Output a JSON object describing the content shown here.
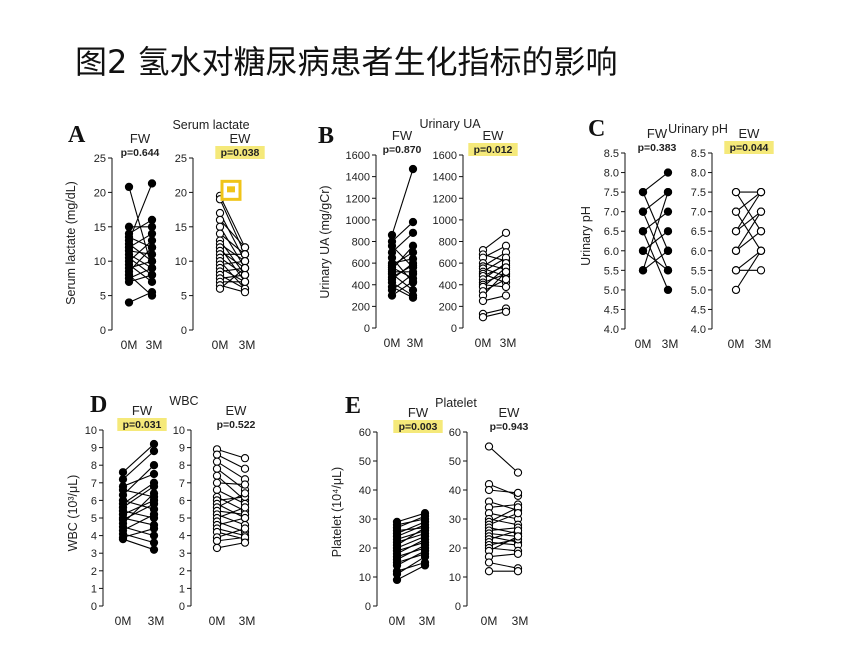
{
  "page": {
    "title": "图2 氢水对糖尿病患者生化指标的影响"
  },
  "colors": {
    "highlight": "#f5e97a",
    "marker": "#f0c419",
    "line": "#000000"
  },
  "chart_data": [
    {
      "letter": "A",
      "type": "line",
      "title": "Serum lactate",
      "ylabel": "Serum lactate (mg/dL)",
      "ylim": [
        0,
        25
      ],
      "yticks": [
        "0",
        "5",
        "10",
        "15",
        "20",
        "25"
      ],
      "x": [
        "0M",
        "3M"
      ],
      "groups": [
        {
          "name": "FW",
          "p": "p=0.644",
          "highlight": false,
          "filled": true,
          "pairs": [
            [
              20.8,
              9
            ],
            [
              15,
              15
            ],
            [
              14,
              16
            ],
            [
              13.5,
              12
            ],
            [
              13,
              21.3
            ],
            [
              12.5,
              10
            ],
            [
              12,
              14
            ],
            [
              11.5,
              11
            ],
            [
              11,
              9
            ],
            [
              10.5,
              8
            ],
            [
              10,
              13
            ],
            [
              9.5,
              7
            ],
            [
              9,
              10
            ],
            [
              8.5,
              12
            ],
            [
              8,
              5
            ],
            [
              7.5,
              9
            ],
            [
              7,
              8
            ],
            [
              4,
              5.5
            ]
          ]
        },
        {
          "name": "EW",
          "p": "p=0.038",
          "highlight": true,
          "filled": false,
          "marker": [
            20.3
          ],
          "pairs": [
            [
              19.5,
              12
            ],
            [
              19,
              11
            ],
            [
              17,
              10
            ],
            [
              16,
              12
            ],
            [
              15,
              9
            ],
            [
              14,
              11
            ],
            [
              13,
              8
            ],
            [
              12.5,
              10
            ],
            [
              12,
              7
            ],
            [
              11.5,
              9
            ],
            [
              11,
              11
            ],
            [
              10.5,
              8
            ],
            [
              10,
              6
            ],
            [
              9.5,
              10
            ],
            [
              9,
              7
            ],
            [
              8.5,
              9
            ],
            [
              8,
              6
            ],
            [
              7.5,
              8
            ],
            [
              7,
              7
            ],
            [
              6.5,
              5.5
            ],
            [
              6,
              9
            ]
          ]
        }
      ]
    },
    {
      "letter": "B",
      "type": "line",
      "title": "Urinary UA",
      "ylabel": "Urinary UA (mg/gCr)",
      "ylim": [
        0,
        1600
      ],
      "yticks": [
        "0",
        "200",
        "400",
        "600",
        "800",
        "1000",
        "1200",
        "1400",
        "1600"
      ],
      "x": [
        "0M",
        "3M"
      ],
      "groups": [
        {
          "name": "FW",
          "p": "p=0.870",
          "highlight": false,
          "filled": true,
          "pairs": [
            [
              860,
              1470
            ],
            [
              800,
              980
            ],
            [
              760,
              560
            ],
            [
              700,
              880
            ],
            [
              650,
              420
            ],
            [
              600,
              640
            ],
            [
              580,
              700
            ],
            [
              560,
              460
            ],
            [
              540,
              760
            ],
            [
              520,
              520
            ],
            [
              500,
              350
            ],
            [
              470,
              580
            ],
            [
              450,
              600
            ],
            [
              420,
              300
            ],
            [
              380,
              280
            ],
            [
              350,
              500
            ],
            [
              300,
              430
            ]
          ]
        },
        {
          "name": "EW",
          "p": "p=0.012",
          "highlight": true,
          "filled": false,
          "pairs": [
            [
              720,
              880
            ],
            [
              680,
              620
            ],
            [
              650,
              760
            ],
            [
              600,
              540
            ],
            [
              570,
              700
            ],
            [
              550,
              480
            ],
            [
              520,
              650
            ],
            [
              500,
              420
            ],
            [
              480,
              580
            ],
            [
              450,
              600
            ],
            [
              420,
              500
            ],
            [
              400,
              380
            ],
            [
              380,
              560
            ],
            [
              340,
              450
            ],
            [
              300,
              520
            ],
            [
              250,
              300
            ],
            [
              130,
              180
            ],
            [
              100,
              150
            ]
          ]
        }
      ]
    },
    {
      "letter": "C",
      "type": "line",
      "title": "Urinary pH",
      "ylabel": "Urinary pH",
      "ylim": [
        4.0,
        8.5
      ],
      "yticks": [
        "4.0",
        "4.5",
        "5.0",
        "5.5",
        "6.0",
        "6.5",
        "7.0",
        "7.5",
        "8.0",
        "8.5"
      ],
      "x": [
        "0M",
        "3M"
      ],
      "groups": [
        {
          "name": "FW",
          "p": "p=0.383",
          "highlight": false,
          "filled": true,
          "pairs": [
            [
              7.5,
              8.0
            ],
            [
              7.5,
              6.0
            ],
            [
              7.0,
              5.5
            ],
            [
              7.0,
              7.5
            ],
            [
              6.5,
              5.0
            ],
            [
              6.5,
              7.0
            ],
            [
              6.0,
              6.5
            ],
            [
              6.0,
              5.5
            ],
            [
              5.5,
              6.0
            ],
            [
              5.5,
              7.5
            ]
          ]
        },
        {
          "name": "EW",
          "p": "p=0.044",
          "highlight": true,
          "filled": false,
          "pairs": [
            [
              7.5,
              7.5
            ],
            [
              7.5,
              6.5
            ],
            [
              7.0,
              7.5
            ],
            [
              7.0,
              6.0
            ],
            [
              6.5,
              7.0
            ],
            [
              6.5,
              7.5
            ],
            [
              6.0,
              6.5
            ],
            [
              6.0,
              7.0
            ],
            [
              5.5,
              6.0
            ],
            [
              5.5,
              5.5
            ],
            [
              5.0,
              6.0
            ]
          ]
        }
      ]
    },
    {
      "letter": "D",
      "type": "line",
      "title": "WBC",
      "ylabel": "WBC (10³/μL)",
      "ylim": [
        0,
        10
      ],
      "yticks": [
        "0",
        "1",
        "2",
        "3",
        "4",
        "5",
        "6",
        "7",
        "8",
        "9",
        "10"
      ],
      "x": [
        "0M",
        "3M"
      ],
      "groups": [
        {
          "name": "FW",
          "p": "p=0.031",
          "highlight": true,
          "filled": true,
          "pairs": [
            [
              7.6,
              9.2
            ],
            [
              7.2,
              8.8
            ],
            [
              6.8,
              7.5
            ],
            [
              6.6,
              6.2
            ],
            [
              6.3,
              8.0
            ],
            [
              6.0,
              5.5
            ],
            [
              5.8,
              7.0
            ],
            [
              5.6,
              6.8
            ],
            [
              5.4,
              5.0
            ],
            [
              5.2,
              6.0
            ],
            [
              5.0,
              4.6
            ],
            [
              4.9,
              5.8
            ],
            [
              4.7,
              6.4
            ],
            [
              4.5,
              4.0
            ],
            [
              4.3,
              5.2
            ],
            [
              4.1,
              3.6
            ],
            [
              3.9,
              4.4
            ],
            [
              3.8,
              3.2
            ]
          ]
        },
        {
          "name": "EW",
          "p": "p=0.522",
          "highlight": false,
          "filled": false,
          "pairs": [
            [
              8.9,
              8.4
            ],
            [
              8.6,
              7.8
            ],
            [
              8.2,
              7.2
            ],
            [
              7.8,
              6.6
            ],
            [
              7.4,
              6.0
            ],
            [
              7.0,
              6.9
            ],
            [
              6.6,
              5.8
            ],
            [
              6.2,
              5.4
            ],
            [
              6.0,
              6.2
            ],
            [
              5.8,
              5.0
            ],
            [
              5.6,
              6.4
            ],
            [
              5.4,
              5.2
            ],
            [
              5.2,
              4.6
            ],
            [
              5.0,
              5.6
            ],
            [
              4.8,
              4.2
            ],
            [
              4.6,
              5.0
            ],
            [
              4.4,
              4.0
            ],
            [
              4.2,
              3.8
            ],
            [
              3.9,
              4.4
            ],
            [
              3.7,
              3.9
            ],
            [
              3.3,
              3.6
            ]
          ]
        }
      ]
    },
    {
      "letter": "E",
      "type": "line",
      "title": "Platelet",
      "ylabel": "Platelet (10⁴/μL)",
      "ylim": [
        0,
        60
      ],
      "yticks": [
        "0",
        "10",
        "20",
        "30",
        "40",
        "50",
        "60"
      ],
      "x": [
        "0M",
        "3M"
      ],
      "groups": [
        {
          "name": "FW",
          "p": "p=0.003",
          "highlight": true,
          "filled": true,
          "pairs": [
            [
              29,
              32
            ],
            [
              28,
              30
            ],
            [
              27,
              31
            ],
            [
              26,
              27
            ],
            [
              25,
              29
            ],
            [
              24,
              28
            ],
            [
              23,
              26
            ],
            [
              22,
              25
            ],
            [
              21,
              27
            ],
            [
              20,
              24
            ],
            [
              19,
              22
            ],
            [
              18,
              23
            ],
            [
              17,
              20
            ],
            [
              16,
              21
            ],
            [
              15,
              18
            ],
            [
              14,
              19
            ],
            [
              12,
              15
            ],
            [
              11,
              17
            ],
            [
              9,
              14
            ]
          ]
        },
        {
          "name": "EW",
          "p": "p=0.943",
          "highlight": false,
          "filled": false,
          "pairs": [
            [
              55,
              46
            ],
            [
              42,
              38
            ],
            [
              40,
              39
            ],
            [
              36,
              33
            ],
            [
              34,
              35
            ],
            [
              32,
              30
            ],
            [
              30,
              28
            ],
            [
              29,
              34
            ],
            [
              28,
              32
            ],
            [
              27,
              25
            ],
            [
              26,
              27
            ],
            [
              25,
              24
            ],
            [
              24,
              22
            ],
            [
              23,
              26
            ],
            [
              22,
              21
            ],
            [
              21,
              23
            ],
            [
              20,
              19
            ],
            [
              19,
              24
            ],
            [
              17,
              18
            ],
            [
              15,
              13
            ],
            [
              12,
              12
            ]
          ]
        }
      ]
    }
  ]
}
